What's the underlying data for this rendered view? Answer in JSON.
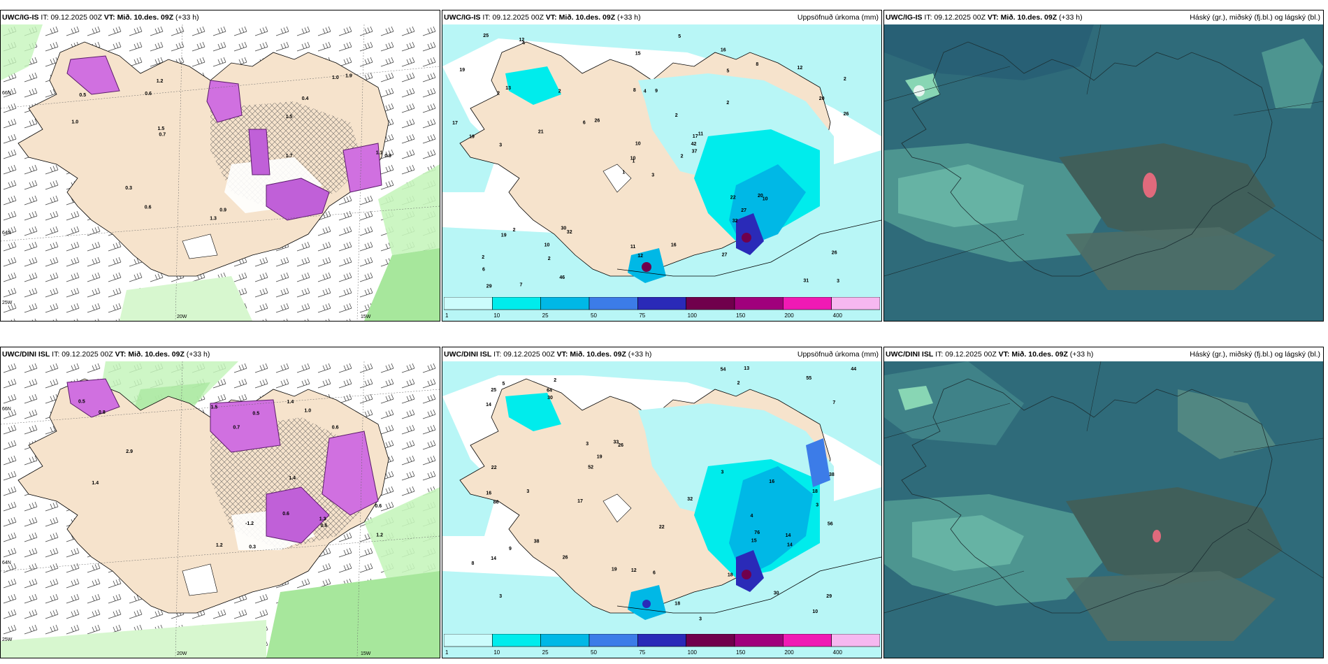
{
  "panels": {
    "p1": {
      "model": "UWC/IG-IS",
      "it_label": "IT:",
      "it": "09.12.2025 00Z",
      "vt_label": "VT:",
      "vt": "Mið. 10.des. 09Z",
      "lead": "(+33 h)",
      "product": ""
    },
    "p2": {
      "model": "UWC/IG-IS",
      "it_label": "IT:",
      "it": "09.12.2025 00Z",
      "vt_label": "VT:",
      "vt": "Mið. 10.des. 09Z",
      "lead": "(+33 h)",
      "product": "Uppsöfnuð úrkoma (mm)"
    },
    "p3": {
      "model": "UWC/IG-IS",
      "it_label": "IT:",
      "it": "09.12.2025 00Z",
      "vt_label": "VT:",
      "vt": "Mið. 10.des. 09Z",
      "lead": "(+33 h)",
      "product": "Háský (gr.), miðský (fj.bl.) og lágský (bl.)"
    },
    "p4": {
      "model": "UWC/DINI ISL",
      "it_label": "IT:",
      "it": "09.12.2025 00Z",
      "vt_label": "VT:",
      "vt": "Mið. 10.des. 09Z",
      "lead": "(+33 h)",
      "product": ""
    },
    "p5": {
      "model": "UWC/DINI ISL",
      "it_label": "IT:",
      "it": "09.12.2025 00Z",
      "vt_label": "VT:",
      "vt": "Mið. 10.des. 09Z",
      "lead": "(+33 h)",
      "product": "Uppsöfnuð úrkoma (mm)"
    },
    "p6": {
      "model": "UWC/DINI ISL",
      "it_label": "IT:",
      "it": "09.12.2025 00Z",
      "vt_label": "VT:",
      "vt": "Mið. 10.des. 09Z",
      "lead": "(+33 h)",
      "product": "Háský (gr.), miðský (fj.bl.) og lágský (bl.)"
    }
  },
  "axes": {
    "lat66": "66N",
    "lat64": "64N",
    "lon25": "25W",
    "lon20": "20W",
    "lon15": "15W"
  },
  "colorbar": {
    "ticks": [
      "1",
      "10",
      "25",
      "50",
      "75",
      "100",
      "150",
      "200",
      "400"
    ],
    "colors": [
      "#ccfcfc",
      "#00ecec",
      "#00b8e6",
      "#3c7ce8",
      "#2a2ab8",
      "#70004c",
      "#a0007c",
      "#f01ab4",
      "#f6b8f0"
    ]
  },
  "colors": {
    "land": "#f6e3cc",
    "sea_precip": "#b8f6f6",
    "cloud_base": "#3d7b82",
    "wind_band": "#c6f5bc"
  },
  "precip_labels_p2": [
    "3",
    "2",
    "1",
    "2",
    "17",
    "32",
    "16",
    "9",
    "5",
    "2",
    "4",
    "3",
    "3",
    "2",
    "1",
    "2",
    "7",
    "8",
    "2",
    "2",
    "26",
    "6",
    "2",
    "4",
    "11",
    "10",
    "13",
    "15",
    "19",
    "22",
    "26",
    "10",
    "11",
    "10",
    "2",
    "8",
    "30",
    "31",
    "26",
    "20",
    "5",
    "6",
    "21",
    "32",
    "46",
    "17",
    "42",
    "29",
    "12",
    "37",
    "19",
    "20",
    "19",
    "27",
    "27",
    "10",
    "12",
    "25",
    "16",
    "12"
  ],
  "precip_labels_p5": [
    "4",
    "3",
    "3",
    "2",
    "26",
    "30",
    "14",
    "2",
    "3",
    "3",
    "14",
    "16",
    "25",
    "29",
    "19",
    "38",
    "22",
    "32",
    "33",
    "38",
    "44",
    "55",
    "52",
    "56",
    "54",
    "64",
    "76",
    "86",
    "30",
    "16",
    "18",
    "18",
    "19",
    "17",
    "18",
    "14",
    "15",
    "3",
    "6",
    "9",
    "7",
    "13",
    "10",
    "12",
    "14",
    "26",
    "8",
    "5",
    "3",
    "22"
  ],
  "temp_labels_p1": [
    "0.5",
    "0.6",
    "1.5",
    "0.9",
    "1.0",
    "1.3",
    "1.7",
    "0.7",
    "1.9",
    "0.9",
    "1.1",
    "1.2",
    "0.4",
    "0.3",
    "1.0",
    "0.6",
    "1.5"
  ],
  "temp_labels_p4": [
    "0.7",
    "0.6",
    "0.5",
    "0.6",
    "1.2",
    "1.5",
    "0.3",
    "1.4",
    "2.9",
    "1.4",
    "1.3",
    "0.5",
    "1.4",
    "0.8",
    "1.2",
    "1.0",
    "0.6",
    "0.6",
    "-1.2"
  ]
}
